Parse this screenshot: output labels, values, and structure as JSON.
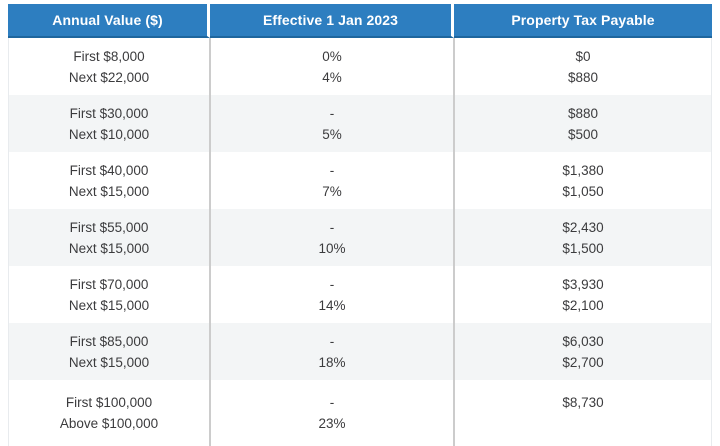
{
  "colors": {
    "header_bg": "#2d7ec0",
    "header_border_bottom": "#1e669e",
    "header_text": "#ffffff",
    "row_bg": "#ffffff",
    "row_alt_bg": "#f3f5f6",
    "column_divider": "#cccccc",
    "body_text": "#3b3b3d"
  },
  "table": {
    "columns": [
      {
        "label": "Annual Value ($)"
      },
      {
        "label": "Effective 1 Jan 2023"
      },
      {
        "label": "Property Tax Payable"
      }
    ],
    "rows": [
      {
        "annual_value": [
          "First $8,000",
          "Next $22,000"
        ],
        "rate": [
          "0%",
          "4%"
        ],
        "tax": [
          "$0",
          "$880"
        ]
      },
      {
        "annual_value": [
          "First $30,000",
          "Next $10,000"
        ],
        "rate": [
          "-",
          "5%"
        ],
        "tax": [
          "$880",
          "$500"
        ]
      },
      {
        "annual_value": [
          "First $40,000",
          "Next $15,000"
        ],
        "rate": [
          "-",
          "7%"
        ],
        "tax": [
          "$1,380",
          "$1,050"
        ]
      },
      {
        "annual_value": [
          "First $55,000",
          "Next $15,000"
        ],
        "rate": [
          "-",
          "10%"
        ],
        "tax": [
          "$2,430",
          "$1,500"
        ]
      },
      {
        "annual_value": [
          "First $70,000",
          "Next $15,000"
        ],
        "rate": [
          "-",
          "14%"
        ],
        "tax": [
          "$3,930",
          "$2,100"
        ]
      },
      {
        "annual_value": [
          "First $85,000",
          "Next $15,000"
        ],
        "rate": [
          "-",
          "18%"
        ],
        "tax": [
          "$6,030",
          "$2,700"
        ]
      },
      {
        "annual_value": [
          "First $100,000",
          "Above $100,000"
        ],
        "rate": [
          "-",
          "23%"
        ],
        "tax": [
          "$8,730",
          ""
        ]
      }
    ]
  },
  "chart_data": {
    "type": "table",
    "title": "",
    "columns": [
      "Annual Value ($)",
      "Effective 1 Jan 2023",
      "Property Tax Payable"
    ],
    "rows": [
      [
        "First $8,000 / Next $22,000",
        "0% / 4%",
        "$0 / $880"
      ],
      [
        "First $30,000 / Next $10,000",
        "- / 5%",
        "$880 / $500"
      ],
      [
        "First $40,000 / Next $15,000",
        "- / 7%",
        "$1,380 / $1,050"
      ],
      [
        "First $55,000 / Next $15,000",
        "- / 10%",
        "$2,430 / $1,500"
      ],
      [
        "First $70,000 / Next $15,000",
        "- / 14%",
        "$3,930 / $2,100"
      ],
      [
        "First $85,000 / Next $15,000",
        "- / 18%",
        "$6,030 / $2,700"
      ],
      [
        "First $100,000 / Above $100,000",
        "- / 23%",
        "$8,730"
      ]
    ],
    "layout_hints": {
      "header_style": "blue background, white bold text",
      "row_striping": "white / light gray alternating",
      "alignment": "all columns center-aligned"
    }
  }
}
